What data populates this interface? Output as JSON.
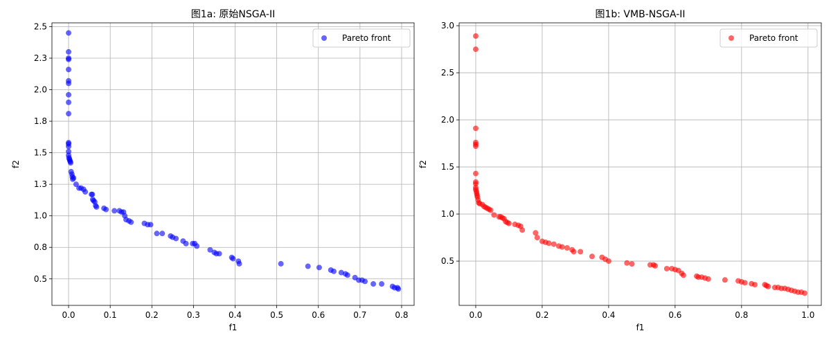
{
  "chart_data": [
    {
      "type": "scatter",
      "title": "图1a: 原始NSGA-II",
      "xlabel": "f1",
      "ylabel": "f2",
      "xlim": [
        -0.04,
        0.83
      ],
      "ylim": [
        0.29,
        2.53
      ],
      "xticks": [
        0.0,
        0.1,
        0.2,
        0.3,
        0.4,
        0.5,
        0.6,
        0.7,
        0.8
      ],
      "yticks": [
        0.5,
        0.75,
        1.0,
        1.25,
        1.5,
        1.75,
        2.0,
        2.25,
        2.5
      ],
      "grid": true,
      "legend": "upper right",
      "series": [
        {
          "name": "Pareto front",
          "color": "#0000ff",
          "points": [
            [
              0.0,
              2.45
            ],
            [
              0.0,
              2.3
            ],
            [
              0.0,
              2.25
            ],
            [
              0.0,
              2.24
            ],
            [
              0.0,
              2.16
            ],
            [
              0.0,
              2.07
            ],
            [
              0.0,
              2.05
            ],
            [
              0.0,
              1.96
            ],
            [
              0.0,
              1.9
            ],
            [
              0.0,
              1.81
            ],
            [
              0.0,
              1.58
            ],
            [
              0.0,
              1.57
            ],
            [
              0.0,
              1.55
            ],
            [
              0.0,
              1.51
            ],
            [
              0.0,
              1.48
            ],
            [
              0.001,
              1.46
            ],
            [
              0.002,
              1.45
            ],
            [
              0.003,
              1.44
            ],
            [
              0.004,
              1.43
            ],
            [
              0.005,
              1.42
            ],
            [
              0.006,
              1.35
            ],
            [
              0.008,
              1.33
            ],
            [
              0.009,
              1.31
            ],
            [
              0.01,
              1.29
            ],
            [
              0.012,
              1.3
            ],
            [
              0.018,
              1.25
            ],
            [
              0.025,
              1.22
            ],
            [
              0.03,
              1.22
            ],
            [
              0.036,
              1.21
            ],
            [
              0.04,
              1.19
            ],
            [
              0.055,
              1.17
            ],
            [
              0.057,
              1.17
            ],
            [
              0.058,
              1.13
            ],
            [
              0.06,
              1.12
            ],
            [
              0.063,
              1.11
            ],
            [
              0.065,
              1.08
            ],
            [
              0.067,
              1.07
            ],
            [
              0.085,
              1.06
            ],
            [
              0.09,
              1.05
            ],
            [
              0.11,
              1.04
            ],
            [
              0.122,
              1.04
            ],
            [
              0.127,
              1.03
            ],
            [
              0.132,
              1.03
            ],
            [
              0.135,
              1.0
            ],
            [
              0.138,
              0.97
            ],
            [
              0.145,
              0.96
            ],
            [
              0.15,
              0.95
            ],
            [
              0.182,
              0.94
            ],
            [
              0.19,
              0.93
            ],
            [
              0.197,
              0.93
            ],
            [
              0.212,
              0.86
            ],
            [
              0.225,
              0.86
            ],
            [
              0.245,
              0.84
            ],
            [
              0.25,
              0.83
            ],
            [
              0.258,
              0.82
            ],
            [
              0.275,
              0.8
            ],
            [
              0.282,
              0.78
            ],
            [
              0.298,
              0.78
            ],
            [
              0.303,
              0.78
            ],
            [
              0.308,
              0.76
            ],
            [
              0.34,
              0.73
            ],
            [
              0.35,
              0.71
            ],
            [
              0.355,
              0.7
            ],
            [
              0.362,
              0.7
            ],
            [
              0.392,
              0.67
            ],
            [
              0.395,
              0.66
            ],
            [
              0.408,
              0.64
            ],
            [
              0.41,
              0.62
            ],
            [
              0.51,
              0.62
            ],
            [
              0.575,
              0.6
            ],
            [
              0.602,
              0.59
            ],
            [
              0.63,
              0.57
            ],
            [
              0.637,
              0.56
            ],
            [
              0.655,
              0.55
            ],
            [
              0.665,
              0.54
            ],
            [
              0.67,
              0.53
            ],
            [
              0.688,
              0.51
            ],
            [
              0.697,
              0.49
            ],
            [
              0.705,
              0.49
            ],
            [
              0.712,
              0.48
            ],
            [
              0.732,
              0.46
            ],
            [
              0.752,
              0.46
            ],
            [
              0.778,
              0.44
            ],
            [
              0.783,
              0.43
            ],
            [
              0.79,
              0.43
            ],
            [
              0.792,
              0.42
            ]
          ]
        }
      ]
    },
    {
      "type": "scatter",
      "title": "图1b: VMB-NSGA-II",
      "xlabel": "f1",
      "ylabel": "f2",
      "xlim": [
        -0.05,
        1.04
      ],
      "ylim": [
        0.03,
        3.03
      ],
      "xticks": [
        0.0,
        0.2,
        0.4,
        0.6,
        0.8,
        1.0
      ],
      "yticks": [
        0.5,
        1.0,
        1.5,
        2.0,
        2.5,
        3.0
      ],
      "grid": true,
      "legend": "upper right",
      "series": [
        {
          "name": "Pareto front",
          "color": "#ff0000",
          "points": [
            [
              0.0,
              2.89
            ],
            [
              0.0,
              2.75
            ],
            [
              0.0,
              1.91
            ],
            [
              0.0,
              1.76
            ],
            [
              0.0,
              1.74
            ],
            [
              0.0,
              1.72
            ],
            [
              0.0,
              1.43
            ],
            [
              0.0,
              1.34
            ],
            [
              0.0,
              1.32
            ],
            [
              0.0,
              1.28
            ],
            [
              0.0,
              1.26
            ],
            [
              0.002,
              1.24
            ],
            [
              0.003,
              1.22
            ],
            [
              0.004,
              1.2
            ],
            [
              0.005,
              1.18
            ],
            [
              0.007,
              1.15
            ],
            [
              0.009,
              1.12
            ],
            [
              0.012,
              1.11
            ],
            [
              0.02,
              1.1
            ],
            [
              0.025,
              1.08
            ],
            [
              0.03,
              1.07
            ],
            [
              0.035,
              1.06
            ],
            [
              0.04,
              1.05
            ],
            [
              0.045,
              1.04
            ],
            [
              0.055,
              0.99
            ],
            [
              0.07,
              0.97
            ],
            [
              0.075,
              0.97
            ],
            [
              0.08,
              0.96
            ],
            [
              0.085,
              0.95
            ],
            [
              0.09,
              0.92
            ],
            [
              0.095,
              0.91
            ],
            [
              0.1,
              0.9
            ],
            [
              0.118,
              0.89
            ],
            [
              0.128,
              0.88
            ],
            [
              0.135,
              0.87
            ],
            [
              0.14,
              0.83
            ],
            [
              0.18,
              0.8
            ],
            [
              0.185,
              0.75
            ],
            [
              0.2,
              0.71
            ],
            [
              0.21,
              0.7
            ],
            [
              0.22,
              0.69
            ],
            [
              0.235,
              0.68
            ],
            [
              0.25,
              0.66
            ],
            [
              0.26,
              0.65
            ],
            [
              0.275,
              0.64
            ],
            [
              0.29,
              0.62
            ],
            [
              0.295,
              0.6
            ],
            [
              0.315,
              0.6
            ],
            [
              0.35,
              0.55
            ],
            [
              0.38,
              0.54
            ],
            [
              0.39,
              0.52
            ],
            [
              0.4,
              0.5
            ],
            [
              0.455,
              0.48
            ],
            [
              0.47,
              0.47
            ],
            [
              0.525,
              0.46
            ],
            [
              0.535,
              0.46
            ],
            [
              0.54,
              0.45
            ],
            [
              0.575,
              0.42
            ],
            [
              0.59,
              0.42
            ],
            [
              0.6,
              0.41
            ],
            [
              0.61,
              0.4
            ],
            [
              0.62,
              0.37
            ],
            [
              0.625,
              0.35
            ],
            [
              0.665,
              0.34
            ],
            [
              0.67,
              0.33
            ],
            [
              0.68,
              0.33
            ],
            [
              0.69,
              0.32
            ],
            [
              0.7,
              0.31
            ],
            [
              0.75,
              0.3
            ],
            [
              0.79,
              0.29
            ],
            [
              0.8,
              0.28
            ],
            [
              0.81,
              0.27
            ],
            [
              0.83,
              0.26
            ],
            [
              0.84,
              0.25
            ],
            [
              0.87,
              0.25
            ],
            [
              0.875,
              0.24
            ],
            [
              0.88,
              0.23
            ],
            [
              0.9,
              0.22
            ],
            [
              0.91,
              0.22
            ],
            [
              0.92,
              0.21
            ],
            [
              0.93,
              0.21
            ],
            [
              0.94,
              0.2
            ],
            [
              0.95,
              0.19
            ],
            [
              0.96,
              0.18
            ],
            [
              0.97,
              0.17
            ],
            [
              0.98,
              0.17
            ],
            [
              0.99,
              0.16
            ]
          ]
        }
      ]
    }
  ]
}
